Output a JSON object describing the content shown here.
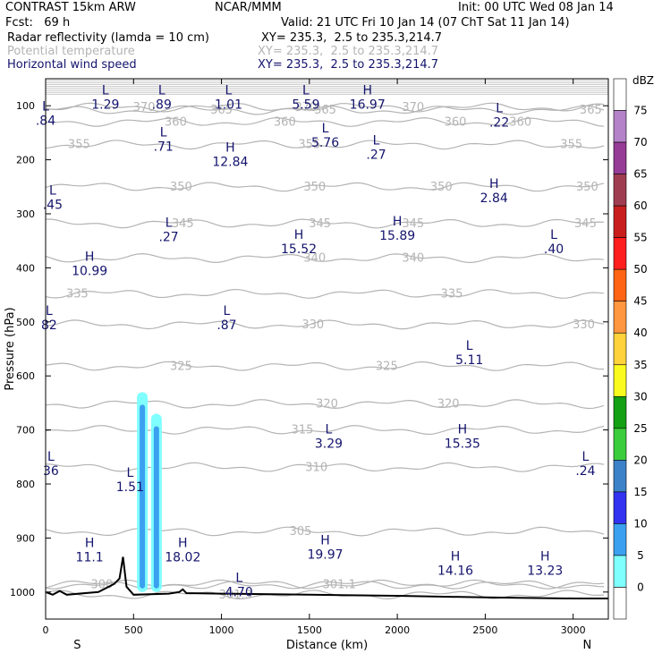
{
  "header": {
    "model": "CONTRAST 15km ARW",
    "center": "NCAR/MMM",
    "init": "Init: 00 UTC Wed 08 Jan 14",
    "fcst": "Fcst:   69 h",
    "valid": "Valid: 21 UTC Fri 10 Jan 14 (07 ChT Sat 11 Jan 14)",
    "fields": [
      {
        "name": "Radar reflectivity (lamda = 10 cm)",
        "xy": "XY= 235.3,  2.5 to 235.3,214.7",
        "color": "#000000"
      },
      {
        "name": "Potential temperature",
        "xy": "XY= 235.3,  2.5 to 235.3,214.7",
        "color": "#b4b4b4"
      },
      {
        "name": "Horizontal wind speed",
        "xy": "XY= 235.3,  2.5 to 235.3,214.7",
        "color": "#14146e"
      }
    ]
  },
  "chart_data": {
    "type": "cross-section",
    "xlabel": "Distance (km)",
    "ylabel": "Pressure (hPa)",
    "xlim": [
      0,
      3200
    ],
    "ylim": [
      1050,
      50
    ],
    "x_ticks": [
      0,
      500,
      1000,
      1500,
      2000,
      2500,
      3000
    ],
    "y_ticks": [
      100,
      200,
      300,
      400,
      500,
      600,
      700,
      800,
      900,
      1000
    ],
    "x_end_labels": {
      "left": "S",
      "right": "N"
    },
    "colorbar": {
      "unit": "dBZ",
      "levels": [
        75,
        70,
        65,
        60,
        55,
        50,
        45,
        40,
        35,
        30,
        25,
        20,
        15,
        10,
        5,
        0
      ],
      "colors": [
        "#ffffff",
        "#b482c8",
        "#963c96",
        "#a03c50",
        "#c81e1e",
        "#ff1e1e",
        "#ff6414",
        "#ff9640",
        "#ffd23c",
        "#fafa1e",
        "#14a014",
        "#3ccd3c",
        "#3c82c8",
        "#3232f0",
        "#3ca0f0",
        "#80ffff",
        "#ffffff"
      ]
    },
    "theta_contours": [
      {
        "value": 370,
        "p": 103,
        "labels": [
          [
            560,
            370
          ],
          [
            1480,
            370
          ],
          [
            2090,
            370
          ]
        ]
      },
      {
        "value": 365,
        "p": 108,
        "labels": [
          [
            1000,
            365
          ],
          [
            1590,
            365
          ],
          [
            3100,
            365
          ]
        ]
      },
      {
        "value": 360,
        "p": 130,
        "labels": [
          [
            740,
            360
          ],
          [
            1360,
            360
          ],
          [
            2330,
            360
          ],
          [
            2700,
            360
          ]
        ]
      },
      {
        "value": 355,
        "p": 172,
        "labels": [
          [
            190,
            355
          ],
          [
            1500,
            355
          ],
          [
            2990,
            355
          ]
        ]
      },
      {
        "value": 350,
        "p": 250,
        "labels": [
          [
            770,
            350
          ],
          [
            1530,
            350
          ],
          [
            2250,
            350
          ],
          [
            3080,
            350
          ]
        ]
      },
      {
        "value": 345,
        "p": 318,
        "labels": [
          [
            780,
            345
          ],
          [
            1560,
            345
          ],
          [
            2090,
            345
          ],
          [
            3070,
            345
          ]
        ]
      },
      {
        "value": 340,
        "p": 382,
        "labels": [
          [
            1530,
            340
          ],
          [
            2090,
            340
          ]
        ]
      },
      {
        "value": 335,
        "p": 448,
        "labels": [
          [
            180,
            335
          ],
          [
            2310,
            335
          ]
        ]
      },
      {
        "value": 330,
        "p": 505,
        "labels": [
          [
            1520,
            330
          ],
          [
            3060,
            330
          ]
        ]
      },
      {
        "value": 325,
        "p": 582,
        "labels": [
          [
            770,
            325
          ],
          [
            1940,
            325
          ]
        ]
      },
      {
        "value": 320,
        "p": 652,
        "labels": [
          [
            1600,
            320
          ],
          [
            2290,
            320
          ]
        ]
      },
      {
        "value": 315,
        "p": 700,
        "labels": [
          [
            1460,
            315
          ]
        ]
      },
      {
        "value": 310,
        "p": 769,
        "labels": [
          [
            1540,
            310
          ]
        ]
      },
      {
        "value": 305,
        "p": 888,
        "labels": [
          [
            1450,
            305
          ]
        ]
      },
      {
        "value": 300,
        "p": 986,
        "labels": [
          [
            320,
            300
          ]
        ]
      },
      {
        "value": 301.1,
        "p": 986,
        "labels": [
          [
            1670,
            301.1
          ]
        ]
      },
      {
        "value": 301.3,
        "p": 1005,
        "labels": [
          [
            1080,
            301.3
          ]
        ]
      }
    ],
    "wind_extrema": [
      {
        "type": "L",
        "value": "1.29",
        "x": 340,
        "p": 82
      },
      {
        "type": "L",
        "value": ".89",
        "x": 660,
        "p": 82
      },
      {
        "type": "L",
        "value": "1.01",
        "x": 1040,
        "p": 82
      },
      {
        "type": "L",
        "value": "5.59",
        "x": 1480,
        "p": 82
      },
      {
        "type": "H",
        "value": "16.97",
        "x": 1830,
        "p": 82
      },
      {
        "type": "L",
        "value": ".84",
        "x": 0,
        "p": 112
      },
      {
        "type": "L",
        "value": ".22",
        "x": 2580,
        "p": 115
      },
      {
        "type": "L",
        "value": ".71",
        "x": 670,
        "p": 160
      },
      {
        "type": "L",
        "value": "5.76",
        "x": 1590,
        "p": 153
      },
      {
        "type": "L",
        "value": ".27",
        "x": 1880,
        "p": 175
      },
      {
        "type": "H",
        "value": "12.84",
        "x": 1050,
        "p": 188
      },
      {
        "type": "L",
        "value": ".45",
        "x": 40,
        "p": 268
      },
      {
        "type": "H",
        "value": "2.84",
        "x": 2550,
        "p": 255
      },
      {
        "type": "L",
        "value": ".27",
        "x": 700,
        "p": 327
      },
      {
        "type": "H",
        "value": "15.52",
        "x": 1440,
        "p": 350
      },
      {
        "type": "H",
        "value": "15.89",
        "x": 2000,
        "p": 325
      },
      {
        "type": "L",
        "value": ".40",
        "x": 2890,
        "p": 350
      },
      {
        "type": "H",
        "value": "10.99",
        "x": 250,
        "p": 390
      },
      {
        "type": "L",
        "value": "82",
        "x": 20,
        "p": 490
      },
      {
        "type": "L",
        "value": ".87",
        "x": 1030,
        "p": 490
      },
      {
        "type": "L",
        "value": "5.11",
        "x": 2410,
        "p": 555
      },
      {
        "type": "L",
        "value": "3.29",
        "x": 1610,
        "p": 710
      },
      {
        "type": "H",
        "value": "15.35",
        "x": 2370,
        "p": 710
      },
      {
        "type": "L",
        "value": "36",
        "x": 30,
        "p": 760
      },
      {
        "type": "L",
        "value": ".24",
        "x": 3070,
        "p": 760
      },
      {
        "type": "L",
        "value": "1.51",
        "x": 480,
        "p": 790
      },
      {
        "type": "H",
        "value": "11.1",
        "x": 250,
        "p": 920
      },
      {
        "type": "H",
        "value": "18.02",
        "x": 780,
        "p": 920
      },
      {
        "type": "H",
        "value": "19.97",
        "x": 1590,
        "p": 915
      },
      {
        "type": "H",
        "value": "14.16",
        "x": 2330,
        "p": 945
      },
      {
        "type": "H",
        "value": "13.23",
        "x": 2840,
        "p": 945
      },
      {
        "type": "L",
        "value": "4.70",
        "x": 1100,
        "p": 985
      }
    ],
    "reflectivity_columns": [
      {
        "x": 550,
        "p_top": 630,
        "p_bottom": 1000,
        "dbz": 10
      },
      {
        "x": 630,
        "p_top": 670,
        "p_bottom": 1000,
        "dbz": 10
      }
    ],
    "terrain": [
      [
        0,
        1000
      ],
      [
        40,
        1005
      ],
      [
        80,
        998
      ],
      [
        120,
        1005
      ],
      [
        300,
        1000
      ],
      [
        390,
        985
      ],
      [
        420,
        975
      ],
      [
        440,
        935
      ],
      [
        460,
        990
      ],
      [
        500,
        1005
      ],
      [
        700,
        1003
      ],
      [
        760,
        1000
      ],
      [
        780,
        995
      ],
      [
        800,
        1002
      ],
      [
        1000,
        1003
      ],
      [
        1500,
        1005
      ],
      [
        2000,
        1007
      ],
      [
        2500,
        1010
      ],
      [
        3000,
        1012
      ],
      [
        3200,
        1012
      ]
    ]
  }
}
